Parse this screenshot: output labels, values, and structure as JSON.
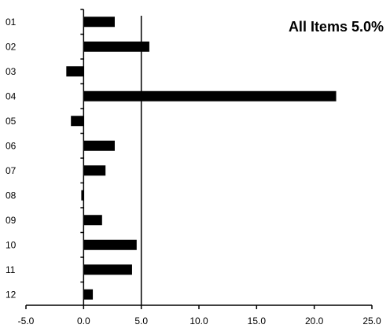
{
  "chart_data": {
    "type": "bar",
    "orientation": "horizontal",
    "categories": [
      "01",
      "02",
      "03",
      "04",
      "05",
      "06",
      "07",
      "08",
      "09",
      "10",
      "11",
      "12"
    ],
    "values": [
      2.7,
      5.7,
      -1.5,
      21.9,
      -1.1,
      2.7,
      1.9,
      -0.2,
      1.6,
      4.6,
      4.2,
      0.8
    ],
    "xlim": [
      -5.0,
      25.0
    ],
    "x_ticks": [
      "-5.0",
      "0.0",
      "5.0",
      "10.0",
      "15.0",
      "20.0",
      "25.0"
    ],
    "reference_line": {
      "value": 5.0
    },
    "annotation": "All Items 5.0%",
    "bar_color": "#000000",
    "grid": false,
    "title": "",
    "xlabel": "",
    "ylabel": ""
  }
}
